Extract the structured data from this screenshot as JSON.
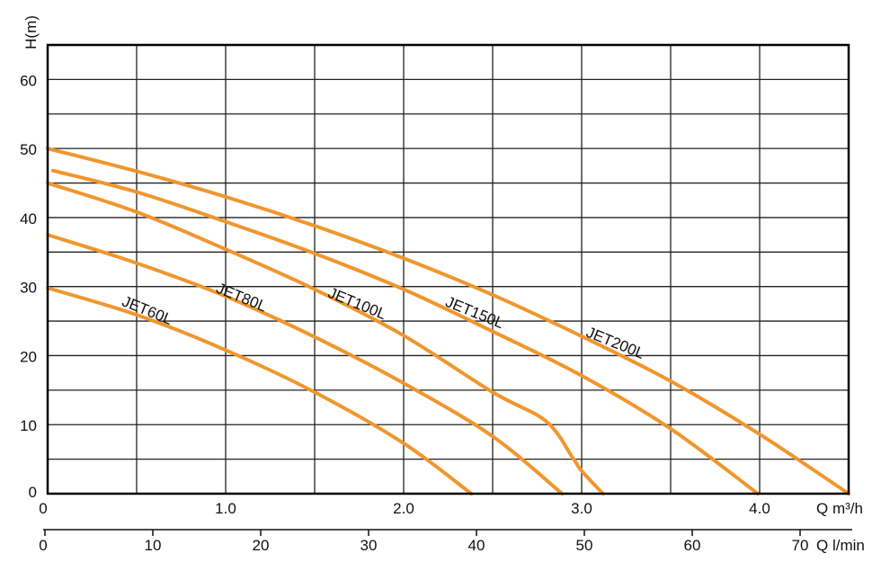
{
  "chart_data": {
    "type": "line",
    "title": "",
    "ylabel": "H(m)",
    "xlabel": "Q m³/h",
    "x2label": "Q l/min",
    "xlim": [
      0,
      4.5
    ],
    "ylim": [
      0,
      65
    ],
    "x2lim": [
      0,
      75
    ],
    "grid": true,
    "xgrid_step": 0.5,
    "ygrid_step": 5,
    "yticks": [
      0,
      10,
      20,
      30,
      40,
      50,
      60
    ],
    "ytick_labels": [
      "0",
      "10",
      "20",
      "30",
      "40",
      "50",
      "60"
    ],
    "xticks": [
      0,
      1.0,
      2.0,
      3.0,
      4.0
    ],
    "xtick_labels": [
      "0",
      "1.0",
      "2.0",
      "3.0",
      "4.0"
    ],
    "x2ticks": [
      0,
      10,
      20,
      30,
      40,
      50,
      60,
      70
    ],
    "x2tick_labels": [
      "0",
      "10",
      "20",
      "30",
      "40",
      "50",
      "60",
      "70"
    ],
    "line_color": "#F0962E",
    "series": [
      {
        "name": "JET60L",
        "label_at": [
          0.56,
          26.6
        ],
        "points": [
          [
            0,
            29.8
          ],
          [
            0.5,
            25.9
          ],
          [
            1.0,
            20.8
          ],
          [
            1.5,
            14.7
          ],
          [
            2.0,
            7.3
          ],
          [
            2.38,
            0
          ]
        ]
      },
      {
        "name": "JET80L",
        "label_at": [
          1.09,
          28.5
        ],
        "points": [
          [
            0,
            37.5
          ],
          [
            0.5,
            33.4
          ],
          [
            1.0,
            28.6
          ],
          [
            1.5,
            22.7
          ],
          [
            2.0,
            16.0
          ],
          [
            2.5,
            8.3
          ],
          [
            2.89,
            0
          ]
        ]
      },
      {
        "name": "JET100L",
        "label_at": [
          1.74,
          27.6
        ],
        "points": [
          [
            0,
            45.0
          ],
          [
            0.5,
            40.8
          ],
          [
            1.0,
            35.4
          ],
          [
            1.5,
            29.6
          ],
          [
            2.0,
            22.9
          ],
          [
            2.5,
            14.7
          ],
          [
            2.8,
            10.5
          ],
          [
            2.95,
            5.2
          ],
          [
            3.0,
            3.3
          ],
          [
            3.12,
            0
          ]
        ]
      },
      {
        "name": "JET150L",
        "label_at": [
          2.4,
          26.3
        ],
        "points": [
          [
            0.03,
            46.8
          ],
          [
            0.5,
            43.7
          ],
          [
            1.0,
            39.4
          ],
          [
            1.5,
            34.8
          ],
          [
            2.0,
            29.6
          ],
          [
            2.5,
            23.5
          ],
          [
            3.0,
            17.1
          ],
          [
            3.5,
            9.4
          ],
          [
            3.99,
            0
          ]
        ]
      },
      {
        "name": "JET200L",
        "label_at": [
          3.19,
          21.9
        ],
        "points": [
          [
            0,
            50.0
          ],
          [
            0.5,
            46.7
          ],
          [
            1.0,
            43.0
          ],
          [
            1.5,
            38.8
          ],
          [
            2.0,
            34.1
          ],
          [
            2.5,
            28.8
          ],
          [
            3.0,
            22.8
          ],
          [
            3.5,
            16.3
          ],
          [
            4.0,
            8.6
          ],
          [
            4.5,
            0
          ]
        ]
      }
    ]
  }
}
